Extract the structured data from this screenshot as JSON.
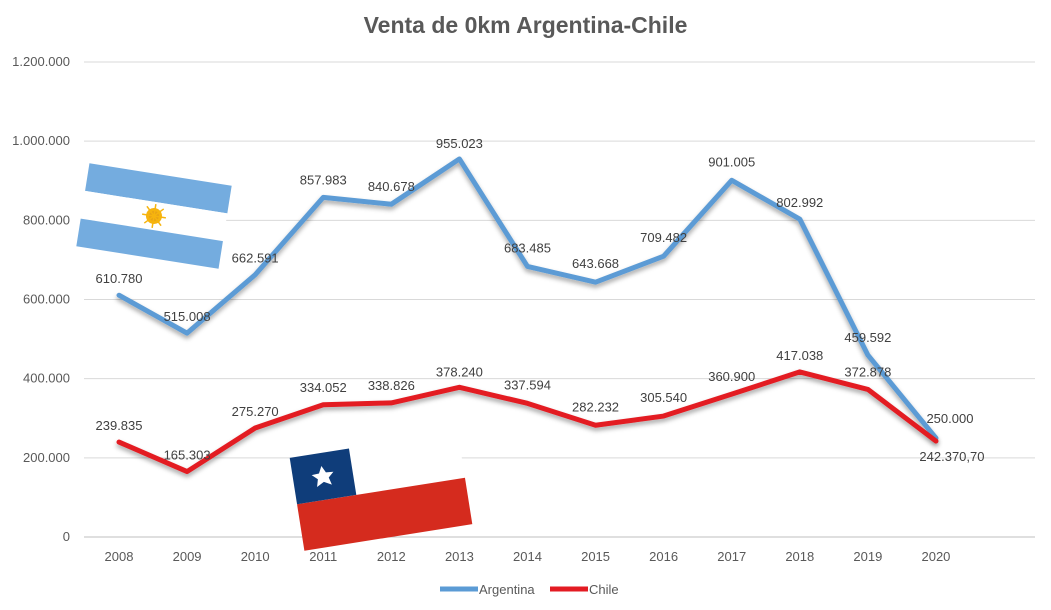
{
  "chart_data": {
    "type": "line",
    "title": "Venta de 0km Argentina-Chile",
    "xlabel": "",
    "ylabel": "",
    "ylim": [
      0,
      1200000
    ],
    "yticks": [
      0,
      200000,
      400000,
      600000,
      800000,
      1000000,
      1200000
    ],
    "ytick_labels": [
      "0",
      "200.000",
      "400.000",
      "600.000",
      "800.000",
      "1.000.000",
      "1.200.000"
    ],
    "grid": true,
    "legend_position": "bottom",
    "categories": [
      "2008",
      "2009",
      "2010",
      "2011",
      "2012",
      "2013",
      "2014",
      "2015",
      "2016",
      "2017",
      "2018",
      "2019",
      "2020"
    ],
    "series": [
      {
        "name": "Argentina",
        "color": "#5b9bd5",
        "values": [
          610780,
          515008,
          662591,
          857983,
          840678,
          955023,
          683485,
          643668,
          709482,
          901005,
          802992,
          459592,
          250000
        ],
        "labels": [
          "610.780",
          "515.008",
          "662.591",
          "857.983",
          "840.678",
          "955.023",
          "683.485",
          "643.668",
          "709.482",
          "901.005",
          "802.992",
          "459.592",
          "250.000"
        ]
      },
      {
        "name": "Chile",
        "color": "#e31b23",
        "values": [
          239835,
          165303,
          275270,
          334052,
          338826,
          378240,
          337594,
          282232,
          305540,
          360900,
          417038,
          372878,
          242370.7
        ],
        "labels": [
          "239.835",
          "165.303",
          "275.270",
          "334.052",
          "338.826",
          "378.240",
          "337.594",
          "282.232",
          "305.540",
          "360.900",
          "417.038",
          "372.878",
          "242.370,70"
        ]
      }
    ]
  }
}
